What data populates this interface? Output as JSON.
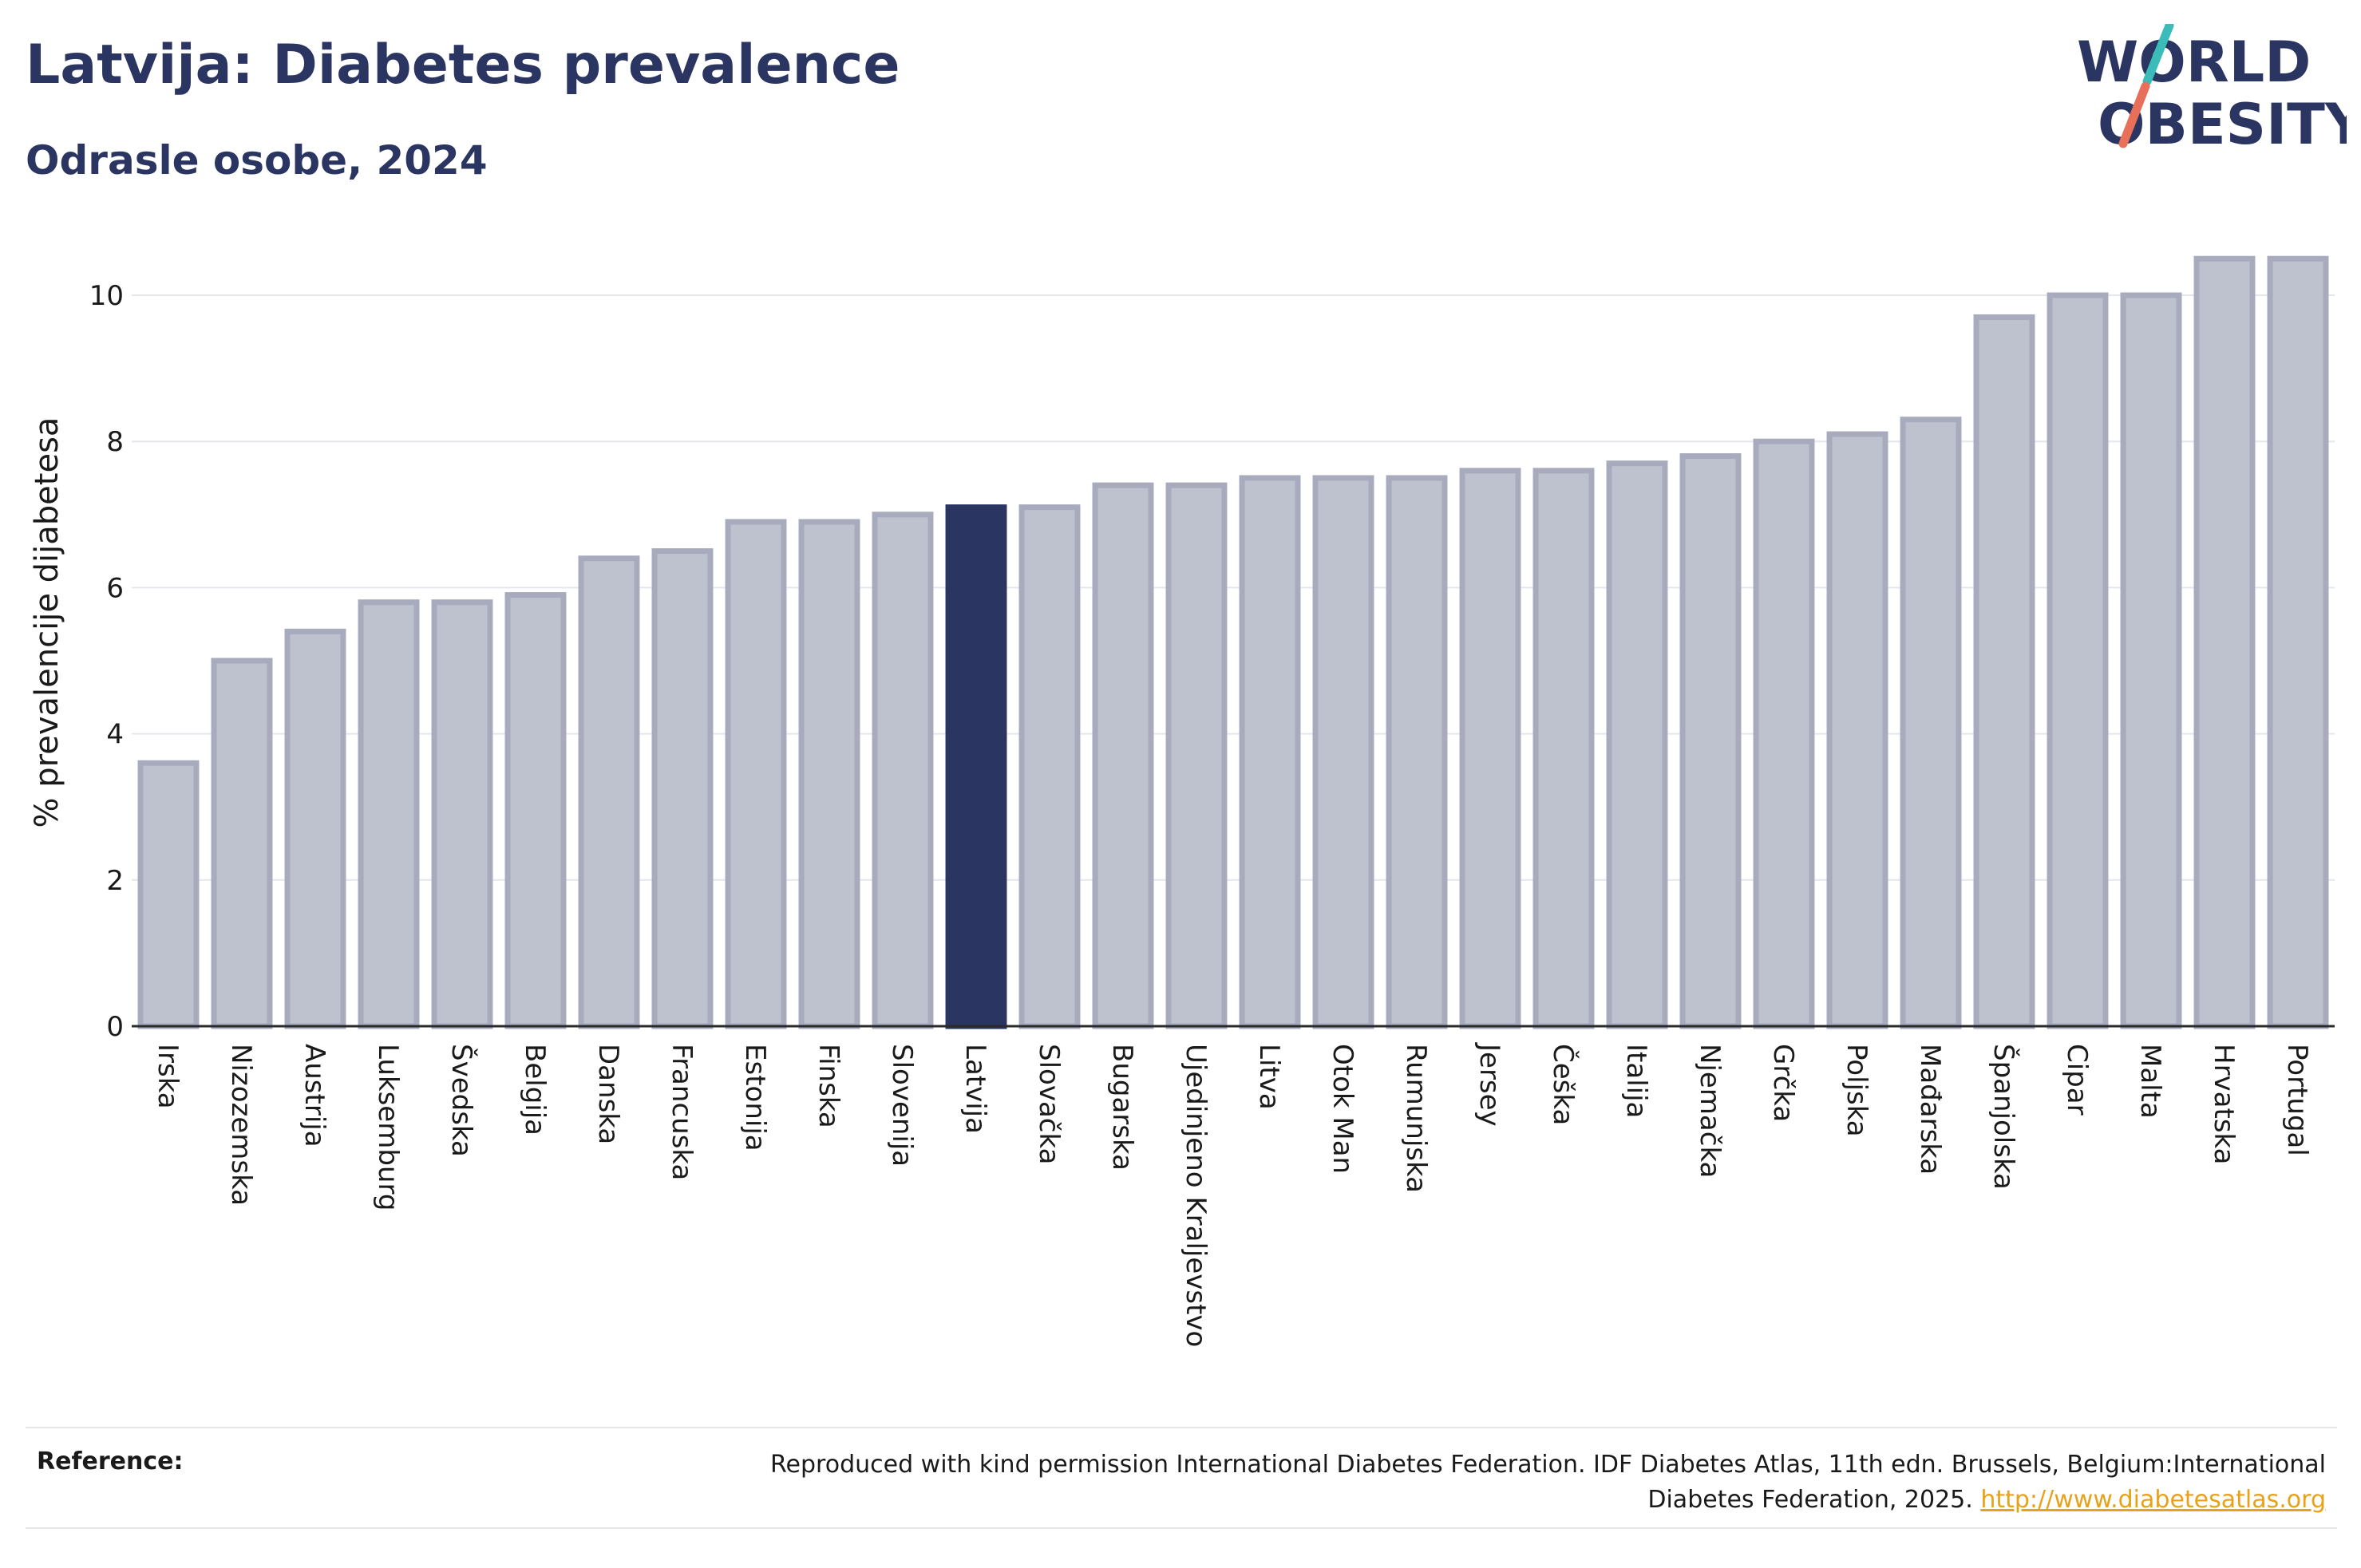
{
  "header": {
    "title": "Latvija: Diabetes prevalence",
    "subtitle": "Odrasle osobe, 2024"
  },
  "logo": {
    "line1": "WORLD",
    "line2": "OBESITY",
    "icon": "world-obesity-logo",
    "colors": {
      "text": "#2b3561",
      "slash_teal": "#3bbcb8",
      "slash_coral": "#e8705a"
    }
  },
  "chart_data": {
    "type": "bar",
    "title": "Latvija: Diabetes prevalence",
    "subtitle": "Odrasle osobe, 2024",
    "xlabel": "",
    "ylabel": "% prevalencije dijabetesa",
    "ylim": [
      0,
      11
    ],
    "yticks": [
      0,
      2,
      4,
      6,
      8,
      10
    ],
    "grid": true,
    "highlight": "Latvija",
    "colors": {
      "default": "#bec1ce",
      "default_edge": "#a7abbd",
      "highlight": "#2b3561"
    },
    "categories": [
      "Irska",
      "Nizozemska",
      "Austrija",
      "Luksemburg",
      "Švedska",
      "Belgija",
      "Danska",
      "Francuska",
      "Estonija",
      "Finska",
      "Slovenija",
      "Latvija",
      "Slovačka",
      "Bugarska",
      "Ujedinjeno Kraljevstvo",
      "Litva",
      "Otok Man",
      "Rumunjska",
      "Jersey",
      "Češka",
      "Italija",
      "Njemačka",
      "Grčka",
      "Poljska",
      "Mađarska",
      "Španjolska",
      "Cipar",
      "Malta",
      "Hrvatska",
      "Portugal"
    ],
    "values": [
      3.6,
      5.0,
      5.4,
      5.8,
      5.8,
      5.9,
      6.4,
      6.5,
      6.9,
      6.9,
      7.0,
      7.1,
      7.1,
      7.4,
      7.4,
      7.5,
      7.5,
      7.5,
      7.6,
      7.6,
      7.7,
      7.8,
      8.0,
      8.1,
      8.3,
      9.7,
      10.0,
      10.0,
      10.5,
      10.5
    ]
  },
  "footer": {
    "reference_label": "Reference:",
    "reference_text": "Reproduced with kind permission International Diabetes Federation. IDF Diabetes Atlas, 11th edn. Brussels, Belgium:International Diabetes Federation, 2025.",
    "reference_link": "http://www.diabetesatlas.org"
  }
}
